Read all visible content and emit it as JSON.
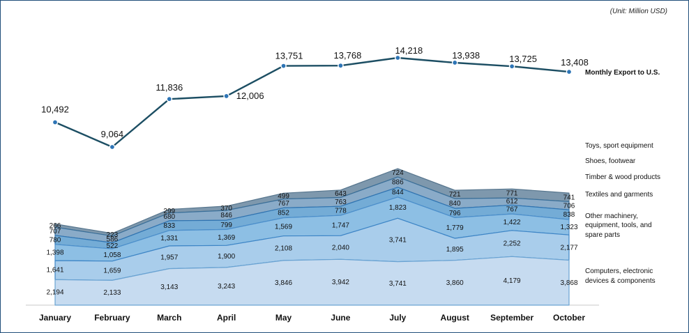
{
  "unit_note": "(Unit: Million USD)",
  "colors": {
    "line": "#1c4e63",
    "point": "#2e75b6",
    "axis": "#c8c8c8",
    "layers": [
      "#c6dbf0",
      "#a9cdeb",
      "#8dbfe4",
      "#74acd6",
      "#8aabc8",
      "#7e98ad"
    ],
    "strokes": [
      "#6aa3d2",
      "#3d85c6",
      "#4d90cc",
      "#2f74b2",
      "#3a6f99",
      "#56758d"
    ]
  },
  "chart_data": {
    "type": "area",
    "categories": [
      "January",
      "February",
      "March",
      "April",
      "May",
      "June",
      "July",
      "August",
      "September",
      "October"
    ],
    "line_series": {
      "name": "Monthly Export to U.S.",
      "values": [
        10492,
        9064,
        11836,
        12006,
        13751,
        13768,
        14218,
        13938,
        13725,
        13408
      ],
      "labels": [
        "10,492",
        "9,064",
        "11,836",
        "12,006",
        "13,751",
        "13,768",
        "14,218",
        "13,938",
        "13,725",
        "13,408"
      ]
    },
    "stack_series": [
      {
        "name": "Computers, electronic devices & components",
        "values": [
          2194,
          2133,
          3143,
          3243,
          3846,
          3942,
          3741,
          3860,
          4179,
          3868
        ],
        "labels": [
          "2,194",
          "2,133",
          "3,143",
          "3,243",
          "3,846",
          "3,942",
          "3,741",
          "3,860",
          "4,179",
          "3,868"
        ]
      },
      {
        "name": "Other machinery, equipment, tools, and spare parts",
        "values": [
          1641,
          1659,
          1957,
          1900,
          2108,
          2040,
          3741,
          1895,
          2252,
          2177
        ],
        "labels": [
          "1,641",
          "1,659",
          "1,957",
          "1,900",
          "2,108",
          "2,040",
          "3,741",
          "1,895",
          "2,252",
          "2,177"
        ]
      },
      {
        "name": "Textiles and garments",
        "values": [
          1398,
          1058,
          1331,
          1369,
          1569,
          1747,
          1823,
          1779,
          1422,
          1323
        ],
        "labels": [
          "1,398",
          "1,058",
          "1,331",
          "1,369",
          "1,569",
          "1,747",
          "1,823",
          "1,779",
          "1,422",
          "1,323"
        ]
      },
      {
        "name": "Timber & wood products",
        "values": [
          780,
          522,
          833,
          799,
          852,
          778,
          844,
          796,
          767,
          838
        ],
        "labels": [
          "780",
          "522",
          "833",
          "799",
          "852",
          "778",
          "844",
          "796",
          "767",
          "838"
        ]
      },
      {
        "name": "Shoes, footwear",
        "values": [
          707,
          586,
          680,
          846,
          767,
          763,
          886,
          840,
          612,
          706
        ],
        "labels": [
          "707",
          "586",
          "680",
          "846",
          "767",
          "763",
          "886",
          "840",
          "612",
          "706"
        ]
      },
      {
        "name": "Toys, sport equipment",
        "values": [
          266,
          223,
          299,
          370,
          499,
          643,
          724,
          721,
          771,
          741
        ],
        "labels": [
          "266",
          "223",
          "299",
          "370",
          "499",
          "643",
          "724",
          "721",
          "771",
          "741"
        ]
      }
    ],
    "legend_lines": [
      [
        "Computers, electronic",
        "devices & components"
      ],
      [
        "Other machinery,",
        "equipment, tools, and",
        "spare parts"
      ],
      [
        "Textiles and garments"
      ],
      [
        "Timber & wood products"
      ],
      [
        "Shoes, footwear"
      ],
      [
        "Toys, sport equipment"
      ]
    ],
    "legend_position": "right",
    "grid": false
  }
}
